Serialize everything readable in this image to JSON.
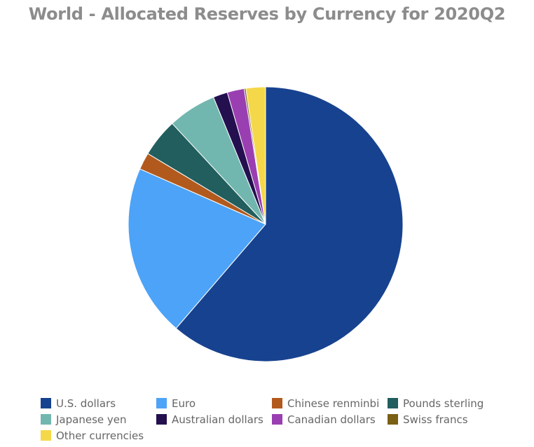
{
  "chart_data": {
    "type": "pie",
    "title": "World - Allocated Reserves by Currency for 2020Q2",
    "slices": [
      {
        "label": "U.S. dollars",
        "value": 61.3,
        "color": "#17428f"
      },
      {
        "label": "Euro",
        "value": 20.3,
        "color": "#4da3f7"
      },
      {
        "label": "Chinese renminbi",
        "value": 2.0,
        "color": "#b25a1e"
      },
      {
        "label": "Pounds sterling",
        "value": 4.5,
        "color": "#225e5e"
      },
      {
        "label": "Japanese yen",
        "value": 5.7,
        "color": "#72b7af"
      },
      {
        "label": "Australian dollars",
        "value": 1.7,
        "color": "#24104f"
      },
      {
        "label": "Canadian dollars",
        "value": 2.0,
        "color": "#9a3fb1"
      },
      {
        "label": "Swiss francs",
        "value": 0.2,
        "color": "#7a5f14"
      },
      {
        "label": "Other currencies",
        "value": 2.3,
        "color": "#f5d84a"
      }
    ],
    "start": "12 o'clock",
    "direction": "clockwise",
    "legend_position": "bottom"
  }
}
